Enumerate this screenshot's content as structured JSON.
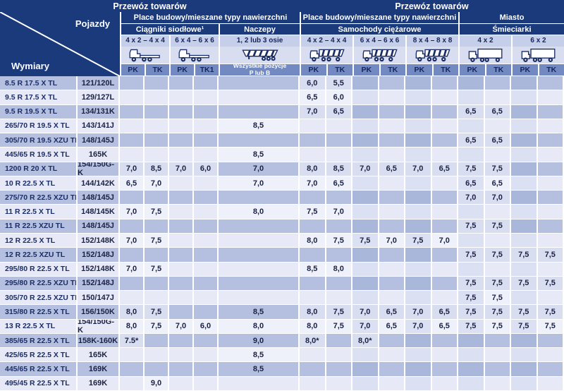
{
  "colors": {
    "navy": "#1a3a7c",
    "band_blue": "#7289c2",
    "axle_bg": "#c6cfe9",
    "icon_bg": "#d8def0",
    "row_dark": "#b5c0e1",
    "row_dark_alt": "#a9b7db",
    "row_light": "#e7eaf6",
    "row_light_alt": "#dbe1f2",
    "value_on_dark": "#d8def0",
    "text_navy": "#14245c"
  },
  "header": {
    "transport_left": "Przewóz towarów",
    "transport_right": "Przewóz towarów",
    "corner": {
      "top_label": "Pojazdy",
      "bottom_label": "Wymiary"
    },
    "surface_left": "Place budowy/mieszane typy nawierzchni",
    "surface_right": "Place budowy/mieszane typy nawierzchni",
    "city": "Miasto",
    "groups": {
      "tractors": "Ciągniki siodłowe¹",
      "trailers": "Naczepy",
      "trucks": "Samochody ciężarowe",
      "garbage": "Śmieciarki"
    },
    "axles": {
      "t1": "4 x 2 – 4 x 4",
      "t2": "6 x 4 – 6 x 6",
      "tr": "1, 2 lub 3 osie",
      "c1": "4 x 2 – 4 x 4",
      "c2": "6 x 4 – 6 x 6",
      "c3": "8 x 4 – 8 x 8",
      "g1": "4 x 2",
      "g2": "6 x 2"
    },
    "icons": {
      "t1": "tractor-unit-icon",
      "t2": "tractor-unit-icon",
      "tr": "tipper-trailer-icon",
      "c1": "tipper-truck-icon",
      "c2": "tipper-truck-icon",
      "c3": "tipper-truck-icon",
      "g1": "box-truck-icon",
      "g2": "box-truck-icon"
    },
    "positions_line1": "Wszystkie pozycje",
    "positions_line2": "P lub B",
    "pk_labels": [
      "PK",
      "TK",
      "PK",
      "TK1",
      "PK",
      "TK",
      "PK",
      "TK",
      "PK",
      "TK",
      "PK",
      "TK",
      "PK",
      "TK"
    ]
  },
  "rows": [
    {
      "size": "8.5 R 17.5 X TL",
      "index": "121/120L",
      "values": [
        "",
        "",
        "",
        "",
        "",
        "6,0",
        "5,5",
        "",
        "",
        "",
        "",
        "",
        "",
        "",
        ""
      ]
    },
    {
      "size": "9.5 R 17.5 X TL",
      "index": "129/127L",
      "values": [
        "",
        "",
        "",
        "",
        "",
        "6,5",
        "6,0",
        "",
        "",
        "",
        "",
        "",
        "",
        "",
        ""
      ]
    },
    {
      "size": "9.5 R 19.5 X TL",
      "index": "134/131K",
      "values": [
        "",
        "",
        "",
        "",
        "",
        "7,0",
        "6,5",
        "",
        "",
        "",
        "",
        "6,5",
        "6,5",
        "",
        ""
      ]
    },
    {
      "size": "265/70 R 19.5 X TL",
      "index": "143/141J",
      "values": [
        "",
        "",
        "",
        "",
        "8,5",
        "",
        "",
        "",
        "",
        "",
        "",
        "",
        "",
        "",
        ""
      ]
    },
    {
      "size": "305/70 R 19.5 XZU TL",
      "index": "148/145J",
      "values": [
        "",
        "",
        "",
        "",
        "",
        "",
        "",
        "",
        "",
        "",
        "",
        "6,5",
        "6,5",
        "",
        ""
      ]
    },
    {
      "size": "445/65 R 19.5 X TL",
      "index": "165K",
      "values": [
        "",
        "",
        "",
        "",
        "8,5",
        "",
        "",
        "",
        "",
        "",
        "",
        "",
        "",
        "",
        ""
      ]
    },
    {
      "size": "1200 R 20 X TL",
      "index": "154/150G-K",
      "values": [
        "7,0",
        "8,5",
        "7,0",
        "6,0",
        "7,0",
        "8,0",
        "8,5",
        "7,0",
        "6,5",
        "7,0",
        "6,5",
        "7,5",
        "7,5",
        "",
        ""
      ]
    },
    {
      "size": "10 R 22.5 X TL",
      "index": "144/142K",
      "values": [
        "6,5",
        "7,0",
        "",
        "",
        "7,0",
        "7,0",
        "6,5",
        "",
        "",
        "",
        "",
        "6,5",
        "6,5",
        "",
        ""
      ]
    },
    {
      "size": "275/70 R 22.5 XZU TL",
      "index": "148/145J",
      "values": [
        "",
        "",
        "",
        "",
        "",
        "",
        "",
        "",
        "",
        "",
        "",
        "7,0",
        "7,0",
        "",
        ""
      ]
    },
    {
      "size": "11 R 22.5 X TL",
      "index": "148/145K",
      "values": [
        "7,0",
        "7,5",
        "",
        "",
        "8,0",
        "7,5",
        "7,0",
        "",
        "",
        "",
        "",
        "",
        "",
        "",
        ""
      ]
    },
    {
      "size": "11 R 22.5 XZU TL",
      "index": "148/145J",
      "values": [
        "",
        "",
        "",
        "",
        "",
        "",
        "",
        "",
        "",
        "",
        "",
        "7,5",
        "7,5",
        "",
        ""
      ]
    },
    {
      "size": "12 R 22.5 X TL",
      "index": "152/148K",
      "values": [
        "7,0",
        "7,5",
        "",
        "",
        "",
        "8,0",
        "7,5",
        "7,5",
        "7,0",
        "7,5",
        "7,0",
        "",
        "",
        "",
        ""
      ]
    },
    {
      "size": "12 R 22.5 XZU TL",
      "index": "152/148J",
      "values": [
        "",
        "",
        "",
        "",
        "",
        "",
        "",
        "",
        "",
        "",
        "",
        "7,5",
        "7,5",
        "7,5",
        "7,5"
      ]
    },
    {
      "size": "295/80 R 22.5 X TL",
      "index": "152/148K",
      "values": [
        "7,0",
        "7,5",
        "",
        "",
        "",
        "8,5",
        "8,0",
        "",
        "",
        "",
        "",
        "",
        "",
        "",
        ""
      ]
    },
    {
      "size": "295/80 R 22.5 XZU TL",
      "index": "152/148J",
      "values": [
        "",
        "",
        "",
        "",
        "",
        "",
        "",
        "",
        "",
        "",
        "",
        "7,5",
        "7,5",
        "7,5",
        "7,5"
      ]
    },
    {
      "size": "305/70 R 22.5 XZU TL",
      "index": "150/147J",
      "values": [
        "",
        "",
        "",
        "",
        "",
        "",
        "",
        "",
        "",
        "",
        "",
        "7,5",
        "7,5",
        "",
        ""
      ]
    },
    {
      "size": "315/80 R 22.5 X TL",
      "index": "156/150K",
      "values": [
        "8,0",
        "7,5",
        "",
        "",
        "8,5",
        "8,0",
        "7,5",
        "7,0",
        "6,5",
        "7,0",
        "6,5",
        "7,5",
        "7,5",
        "7,5",
        "7,5"
      ]
    },
    {
      "size": "13 R 22.5 X TL",
      "index": "154/150G-K",
      "values": [
        "8,0",
        "7,5",
        "7,0",
        "6,0",
        "8,0",
        "8,0",
        "7,5",
        "7,0",
        "6,5",
        "7,0",
        "6,5",
        "7,5",
        "7,5",
        "7,5",
        "7,5"
      ]
    },
    {
      "size": "385/65 R 22.5 X TL",
      "index": "158K-160K",
      "values": [
        "7.5*",
        "",
        "",
        "",
        "9,0",
        "8,0*",
        "",
        "8,0*",
        "",
        "",
        "",
        "",
        "",
        "",
        ""
      ]
    },
    {
      "size": "425/65 R 22.5 X TL",
      "index": "165K",
      "values": [
        "",
        "",
        "",
        "",
        "8,5",
        "",
        "",
        "",
        "",
        "",
        "",
        "",
        "",
        "",
        ""
      ]
    },
    {
      "size": "445/65 R 22.5 X TL",
      "index": "169K",
      "values": [
        "",
        "",
        "",
        "",
        "8,5",
        "",
        "",
        "",
        "",
        "",
        "",
        "",
        "",
        "",
        ""
      ]
    },
    {
      "size": "495/45 R 22.5 X TL",
      "index": "169K",
      "values": [
        "",
        "9,0",
        "",
        "",
        "",
        "",
        "",
        "",
        "",
        "",
        "",
        "",
        "",
        "",
        ""
      ]
    }
  ]
}
